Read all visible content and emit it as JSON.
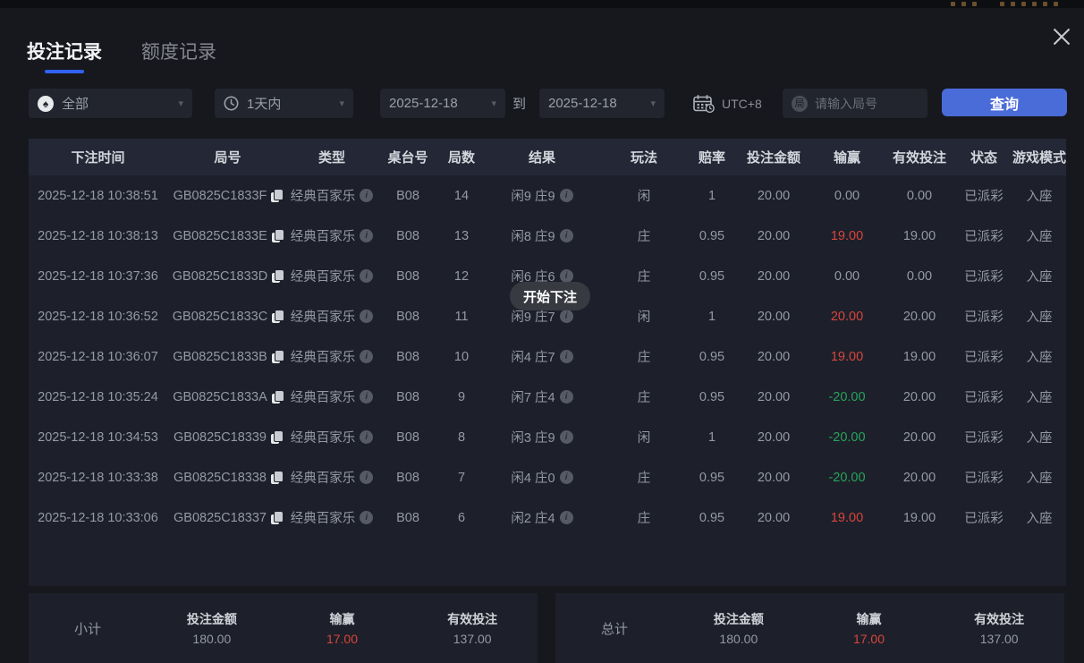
{
  "palette": {
    "accent_blue": "#4a6cd9",
    "tab_underline": "#2f62f5",
    "win_red": "#d8453c",
    "loss_green": "#28a35c",
    "panel_bg": "#1d202a",
    "header_bg": "#242836"
  },
  "tabs": [
    {
      "label": "投注记录",
      "active": true
    },
    {
      "label": "额度记录",
      "active": false
    }
  ],
  "filters": {
    "game_type_value": "全部",
    "time_range_value": "1天内",
    "date_from": "2025-12-18",
    "to_label": "到",
    "date_to": "2025-12-18",
    "timezone": "UTC+8",
    "search_badge": "局",
    "search_placeholder": "请输入局号",
    "query_label": "查询"
  },
  "toast": "开始下注",
  "table": {
    "headers": [
      "下注时间",
      "局号",
      "类型",
      "桌台号",
      "局数",
      "结果",
      "玩法",
      "赔率",
      "投注金额",
      "输赢",
      "有效投注",
      "状态",
      "游戏模式"
    ],
    "rows": [
      {
        "time": "2025-12-18 10:38:51",
        "game_id": "GB0825C1833F",
        "type": "经典百家乐",
        "table_no": "B08",
        "round": "14",
        "result": "闲9 庄9",
        "play": "闲",
        "odds": "1",
        "bet": "20.00",
        "win": "0.00",
        "valid": "0.00",
        "status": "已派彩",
        "mode": "入座"
      },
      {
        "time": "2025-12-18 10:38:13",
        "game_id": "GB0825C1833E",
        "type": "经典百家乐",
        "table_no": "B08",
        "round": "13",
        "result": "闲8 庄9",
        "play": "庄",
        "odds": "0.95",
        "bet": "20.00",
        "win": "19.00",
        "valid": "19.00",
        "status": "已派彩",
        "mode": "入座"
      },
      {
        "time": "2025-12-18 10:37:36",
        "game_id": "GB0825C1833D",
        "type": "经典百家乐",
        "table_no": "B08",
        "round": "12",
        "result": "闲6 庄6",
        "play": "庄",
        "odds": "0.95",
        "bet": "20.00",
        "win": "0.00",
        "valid": "0.00",
        "status": "已派彩",
        "mode": "入座"
      },
      {
        "time": "2025-12-18 10:36:52",
        "game_id": "GB0825C1833C",
        "type": "经典百家乐",
        "table_no": "B08",
        "round": "11",
        "result": "闲9 庄7",
        "play": "闲",
        "odds": "1",
        "bet": "20.00",
        "win": "20.00",
        "valid": "20.00",
        "status": "已派彩",
        "mode": "入座"
      },
      {
        "time": "2025-12-18 10:36:07",
        "game_id": "GB0825C1833B",
        "type": "经典百家乐",
        "table_no": "B08",
        "round": "10",
        "result": "闲4 庄7",
        "play": "庄",
        "odds": "0.95",
        "bet": "20.00",
        "win": "19.00",
        "valid": "19.00",
        "status": "已派彩",
        "mode": "入座"
      },
      {
        "time": "2025-12-18 10:35:24",
        "game_id": "GB0825C1833A",
        "type": "经典百家乐",
        "table_no": "B08",
        "round": "9",
        "result": "闲7 庄4",
        "play": "庄",
        "odds": "0.95",
        "bet": "20.00",
        "win": "-20.00",
        "valid": "20.00",
        "status": "已派彩",
        "mode": "入座"
      },
      {
        "time": "2025-12-18 10:34:53",
        "game_id": "GB0825C18339",
        "type": "经典百家乐",
        "table_no": "B08",
        "round": "8",
        "result": "闲3 庄9",
        "play": "闲",
        "odds": "1",
        "bet": "20.00",
        "win": "-20.00",
        "valid": "20.00",
        "status": "已派彩",
        "mode": "入座"
      },
      {
        "time": "2025-12-18 10:33:38",
        "game_id": "GB0825C18338",
        "type": "经典百家乐",
        "table_no": "B08",
        "round": "7",
        "result": "闲4 庄0",
        "play": "庄",
        "odds": "0.95",
        "bet": "20.00",
        "win": "-20.00",
        "valid": "20.00",
        "status": "已派彩",
        "mode": "入座"
      },
      {
        "time": "2025-12-18 10:33:06",
        "game_id": "GB0825C18337",
        "type": "经典百家乐",
        "table_no": "B08",
        "round": "6",
        "result": "闲2 庄4",
        "play": "庄",
        "odds": "0.95",
        "bet": "20.00",
        "win": "19.00",
        "valid": "19.00",
        "status": "已派彩",
        "mode": "入座"
      }
    ]
  },
  "summary": {
    "subtotal": {
      "label": "小计",
      "bet_label": "投注金额",
      "bet": "180.00",
      "win_label": "输赢",
      "win": "17.00",
      "valid_label": "有效投注",
      "valid": "137.00"
    },
    "total": {
      "label": "总计",
      "bet_label": "投注金额",
      "bet": "180.00",
      "win_label": "输赢",
      "win": "17.00",
      "valid_label": "有效投注",
      "valid": "137.00"
    }
  }
}
